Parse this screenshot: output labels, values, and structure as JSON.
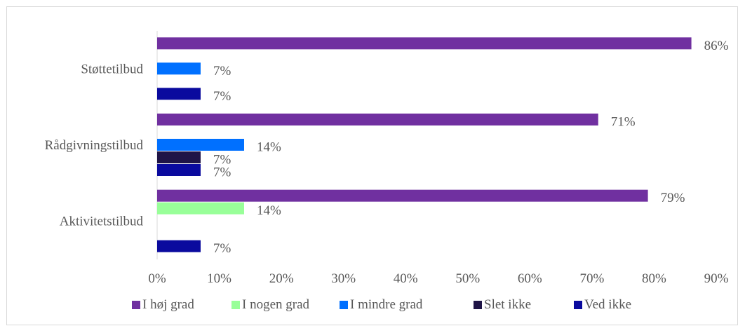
{
  "chart_data": {
    "type": "bar",
    "orientation": "horizontal",
    "categories": [
      "Aktivitetstilbud",
      "Rådgivningstilbud",
      "Støttetilbud"
    ],
    "series": [
      {
        "name": "I høj grad",
        "color": "#7030a0",
        "values": [
          79,
          71,
          86
        ]
      },
      {
        "name": "I nogen grad",
        "color": "#99ff99",
        "values": [
          14,
          0,
          0
        ]
      },
      {
        "name": "I mindre grad",
        "color": "#0070ff",
        "values": [
          0,
          14,
          7
        ]
      },
      {
        "name": "Slet ikke",
        "color": "#1f1446",
        "values": [
          0,
          7,
          0
        ]
      },
      {
        "name": "Ved ikke",
        "color": "#0a0a9e",
        "values": [
          7,
          7,
          7
        ]
      }
    ],
    "data_labels": [
      [
        "79%",
        "14%",
        "",
        "",
        "7%"
      ],
      [
        "71%",
        "",
        "14%",
        "7%",
        "7%"
      ],
      [
        "86%",
        "",
        "7%",
        "",
        "7%"
      ]
    ],
    "xlim": [
      0,
      90
    ],
    "x_ticks": [
      "0%",
      "10%",
      "20%",
      "30%",
      "40%",
      "50%",
      "60%",
      "70%",
      "80%",
      "90%"
    ],
    "x_tick_values": [
      0,
      10,
      20,
      30,
      40,
      50,
      60,
      70,
      80,
      90
    ],
    "title": "",
    "xlabel": "",
    "ylabel": "",
    "grid": false,
    "legend_position": "bottom"
  }
}
